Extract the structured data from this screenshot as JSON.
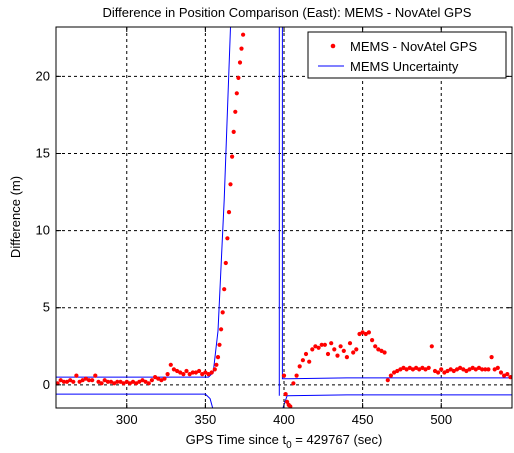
{
  "chart_data": {
    "type": "line",
    "title": "Difference in Position Comparison (East): MEMS - NovAtel GPS",
    "xlabel_main": "GPS Time since t",
    "xlabel_sub": "0",
    "xlabel_rest": " = 429767 (sec)",
    "ylabel": "Difference (m)",
    "xlim": [
      255,
      545
    ],
    "ylim": [
      -1.5,
      23.2
    ],
    "xticks": [
      300,
      350,
      400,
      450,
      500
    ],
    "yticks": [
      0,
      5,
      10,
      15,
      20
    ],
    "grid": true,
    "legend": {
      "position": "top-right",
      "entries": [
        "MEMS - NovAtel GPS",
        "MEMS Uncertainty"
      ]
    },
    "colors": {
      "scatter": "#ff0000",
      "uncertainty": "#0000ff"
    },
    "series": [
      {
        "name": "MEMS - NovAtel GPS",
        "kind": "scatter",
        "points": [
          [
            256,
            0.1
          ],
          [
            258,
            0.3
          ],
          [
            260,
            0.2
          ],
          [
            262,
            0.2
          ],
          [
            264,
            0.3
          ],
          [
            266,
            0.2
          ],
          [
            268,
            0.6
          ],
          [
            270,
            0.2
          ],
          [
            272,
            0.3
          ],
          [
            274,
            0.4
          ],
          [
            276,
            0.3
          ],
          [
            278,
            0.3
          ],
          [
            280,
            0.6
          ],
          [
            282,
            0.2
          ],
          [
            284,
            0.1
          ],
          [
            286,
            0.3
          ],
          [
            288,
            0.2
          ],
          [
            290,
            0.2
          ],
          [
            292,
            0.1
          ],
          [
            294,
            0.2
          ],
          [
            296,
            0.2
          ],
          [
            298,
            0.1
          ],
          [
            300,
            0.2
          ],
          [
            302,
            0.1
          ],
          [
            304,
            0.2
          ],
          [
            306,
            0.1
          ],
          [
            308,
            0.2
          ],
          [
            310,
            0.3
          ],
          [
            312,
            0.2
          ],
          [
            314,
            0.1
          ],
          [
            316,
            0.3
          ],
          [
            318,
            0.5
          ],
          [
            320,
            0.4
          ],
          [
            322,
            0.3
          ],
          [
            324,
            0.4
          ],
          [
            326,
            0.7
          ],
          [
            328,
            1.3
          ],
          [
            330,
            1.0
          ],
          [
            332,
            0.9
          ],
          [
            334,
            0.8
          ],
          [
            336,
            0.7
          ],
          [
            338,
            0.9
          ],
          [
            340,
            0.7
          ],
          [
            342,
            0.8
          ],
          [
            344,
            0.8
          ],
          [
            346,
            0.9
          ],
          [
            348,
            0.7
          ],
          [
            350,
            0.8
          ],
          [
            352,
            0.7
          ],
          [
            354,
            0.8
          ],
          [
            356,
            1.0
          ],
          [
            357,
            1.3
          ],
          [
            358,
            1.8
          ],
          [
            359,
            2.6
          ],
          [
            360,
            3.6
          ],
          [
            361,
            4.7
          ],
          [
            362,
            6.2
          ],
          [
            363,
            7.9
          ],
          [
            364,
            9.5
          ],
          [
            365,
            11.2
          ],
          [
            366,
            13.0
          ],
          [
            367,
            14.8
          ],
          [
            368,
            16.4
          ],
          [
            369,
            17.7
          ],
          [
            370,
            18.9
          ],
          [
            371,
            19.9
          ],
          [
            372,
            20.9
          ],
          [
            373,
            21.8
          ],
          [
            374,
            22.7
          ],
          [
            400,
            0.6
          ],
          [
            401,
            -0.6
          ],
          [
            402,
            -1.1
          ],
          [
            403,
            -1.3
          ],
          [
            404,
            -1.4
          ],
          [
            406,
            0.1
          ],
          [
            408,
            0.6
          ],
          [
            410,
            1.2
          ],
          [
            412,
            1.6
          ],
          [
            414,
            2.0
          ],
          [
            416,
            1.5
          ],
          [
            418,
            2.3
          ],
          [
            420,
            2.5
          ],
          [
            422,
            2.4
          ],
          [
            424,
            2.6
          ],
          [
            426,
            2.6
          ],
          [
            428,
            2.0
          ],
          [
            430,
            2.7
          ],
          [
            432,
            2.3
          ],
          [
            434,
            1.9
          ],
          [
            436,
            2.5
          ],
          [
            438,
            2.2
          ],
          [
            440,
            1.8
          ],
          [
            442,
            2.7
          ],
          [
            444,
            2.1
          ],
          [
            446,
            2.3
          ],
          [
            448,
            3.3
          ],
          [
            450,
            3.4
          ],
          [
            452,
            3.3
          ],
          [
            454,
            3.4
          ],
          [
            456,
            2.9
          ],
          [
            458,
            2.5
          ],
          [
            460,
            2.3
          ],
          [
            462,
            2.2
          ],
          [
            464,
            2.1
          ],
          [
            466,
            0.3
          ],
          [
            468,
            0.6
          ],
          [
            470,
            0.8
          ],
          [
            472,
            0.9
          ],
          [
            474,
            1.0
          ],
          [
            476,
            1.1
          ],
          [
            478,
            1.0
          ],
          [
            480,
            1.1
          ],
          [
            482,
            1.0
          ],
          [
            484,
            1.1
          ],
          [
            486,
            1.0
          ],
          [
            488,
            1.1
          ],
          [
            490,
            1.0
          ],
          [
            492,
            1.1
          ],
          [
            494,
            2.5
          ],
          [
            496,
            0.9
          ],
          [
            498,
            0.8
          ],
          [
            500,
            1.0
          ],
          [
            502,
            0.8
          ],
          [
            504,
            0.9
          ],
          [
            506,
            1.0
          ],
          [
            508,
            0.9
          ],
          [
            510,
            1.0
          ],
          [
            512,
            1.1
          ],
          [
            514,
            1.0
          ],
          [
            516,
            0.9
          ],
          [
            518,
            1.0
          ],
          [
            520,
            1.1
          ],
          [
            522,
            1.0
          ],
          [
            524,
            1.1
          ],
          [
            526,
            1.0
          ],
          [
            528,
            1.0
          ],
          [
            530,
            1.0
          ],
          [
            532,
            1.8
          ],
          [
            534,
            1.0
          ],
          [
            536,
            1.1
          ],
          [
            538,
            0.8
          ],
          [
            540,
            0.6
          ],
          [
            542,
            0.7
          ],
          [
            544,
            0.5
          ]
        ]
      },
      {
        "name": "MEMS Uncertainty",
        "kind": "line",
        "paths": [
          [
            [
              255,
              0.5
            ],
            [
              352,
              0.5
            ],
            [
              355,
              0.8
            ],
            [
              358,
              3.5
            ],
            [
              362,
              12.0
            ],
            [
              366,
              23.2
            ]
          ],
          [
            [
              397,
              23.2
            ],
            [
              397,
              -0.7
            ]
          ],
          [
            [
              399,
              23.2
            ],
            [
              399,
              0.4
            ],
            [
              403,
              0.4
            ],
            [
              440,
              0.45
            ],
            [
              470,
              0.45
            ],
            [
              500,
              0.45
            ],
            [
              545,
              0.45
            ]
          ],
          [
            [
              255,
              -0.6
            ],
            [
              300,
              -0.6
            ],
            [
              350,
              -0.6
            ],
            [
              353,
              -0.9
            ],
            [
              356,
              -2.0
            ]
          ],
          [
            [
              399,
              -1.6
            ],
            [
              402,
              -0.7
            ],
            [
              440,
              -0.65
            ],
            [
              500,
              -0.65
            ],
            [
              545,
              -0.65
            ]
          ]
        ]
      }
    ]
  }
}
